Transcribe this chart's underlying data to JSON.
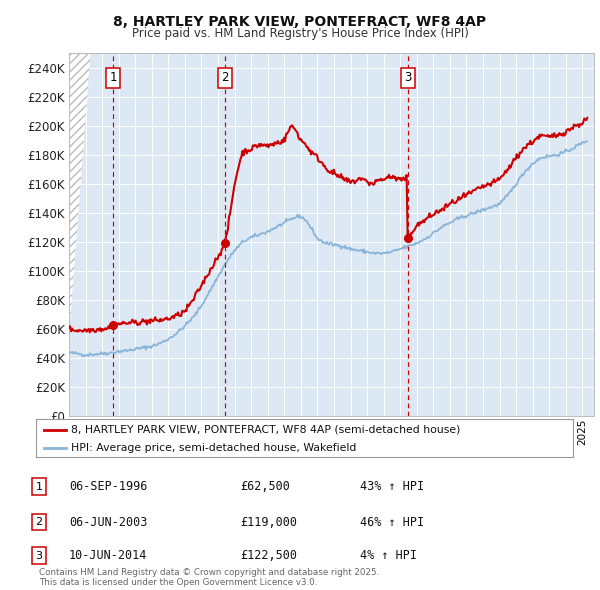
{
  "title1": "8, HARTLEY PARK VIEW, PONTEFRACT, WF8 4AP",
  "title2": "Price paid vs. HM Land Registry's House Price Index (HPI)",
  "background_color": "#dce9f5",
  "plot_bg_color": "#dce9f5",
  "grid_color": "#ffffff",
  "hpi_line_color": "#8ab4d8",
  "price_line_color": "#cc0000",
  "sale_marker_color": "#cc0000",
  "vline_color": "#cc0000",
  "ylim": [
    0,
    250000
  ],
  "yticks": [
    0,
    20000,
    40000,
    60000,
    80000,
    100000,
    120000,
    140000,
    160000,
    180000,
    200000,
    220000,
    240000
  ],
  "xlim_start": 1994.0,
  "xlim_end": 2025.7,
  "sales": [
    {
      "year": 1996.67,
      "price": 62500,
      "label": "1"
    },
    {
      "year": 2003.42,
      "price": 119000,
      "label": "2"
    },
    {
      "year": 2014.44,
      "price": 122500,
      "label": "3"
    }
  ],
  "sale_annotations": [
    {
      "label": "1",
      "date": "06-SEP-1996",
      "price": "£62,500",
      "hpi_pct": "43% ↑ HPI"
    },
    {
      "label": "2",
      "date": "06-JUN-2003",
      "price": "£119,000",
      "hpi_pct": "46% ↑ HPI"
    },
    {
      "label": "3",
      "date": "10-JUN-2014",
      "price": "£122,500",
      "hpi_pct": "4% ↑ HPI"
    }
  ],
  "legend_line1": "8, HARTLEY PARK VIEW, PONTEFRACT, WF8 4AP (semi-detached house)",
  "legend_line2": "HPI: Average price, semi-detached house, Wakefield",
  "footer": "Contains HM Land Registry data © Crown copyright and database right 2025.\nThis data is licensed under the Open Government Licence v3.0.",
  "hpi_anchors": [
    [
      1994.0,
      43500
    ],
    [
      1994.5,
      43000
    ],
    [
      1995.0,
      42000
    ],
    [
      1995.5,
      42500
    ],
    [
      1996.0,
      43000
    ],
    [
      1996.5,
      43500
    ],
    [
      1997.0,
      44500
    ],
    [
      1997.5,
      45000
    ],
    [
      1998.0,
      46000
    ],
    [
      1998.5,
      47000
    ],
    [
      1999.0,
      48000
    ],
    [
      1999.5,
      50000
    ],
    [
      2000.0,
      53000
    ],
    [
      2000.5,
      57000
    ],
    [
      2001.0,
      62000
    ],
    [
      2001.5,
      68000
    ],
    [
      2002.0,
      76000
    ],
    [
      2002.5,
      86000
    ],
    [
      2003.0,
      96000
    ],
    [
      2003.5,
      106000
    ],
    [
      2004.0,
      114000
    ],
    [
      2004.5,
      120000
    ],
    [
      2005.0,
      123000
    ],
    [
      2005.5,
      125000
    ],
    [
      2006.0,
      127000
    ],
    [
      2006.5,
      130000
    ],
    [
      2007.0,
      133000
    ],
    [
      2007.5,
      136000
    ],
    [
      2007.9,
      138000
    ],
    [
      2008.3,
      135000
    ],
    [
      2008.7,
      128000
    ],
    [
      2009.0,
      122000
    ],
    [
      2009.5,
      119000
    ],
    [
      2010.0,
      118000
    ],
    [
      2010.5,
      117000
    ],
    [
      2011.0,
      115000
    ],
    [
      2011.5,
      114000
    ],
    [
      2012.0,
      113000
    ],
    [
      2012.5,
      112000
    ],
    [
      2013.0,
      112000
    ],
    [
      2013.5,
      113000
    ],
    [
      2014.0,
      115000
    ],
    [
      2014.5,
      117000
    ],
    [
      2015.0,
      119000
    ],
    [
      2015.5,
      122000
    ],
    [
      2016.0,
      126000
    ],
    [
      2016.5,
      130000
    ],
    [
      2017.0,
      133000
    ],
    [
      2017.5,
      136000
    ],
    [
      2018.0,
      138000
    ],
    [
      2018.5,
      140000
    ],
    [
      2019.0,
      142000
    ],
    [
      2019.5,
      144000
    ],
    [
      2020.0,
      146000
    ],
    [
      2020.5,
      152000
    ],
    [
      2021.0,
      160000
    ],
    [
      2021.5,
      168000
    ],
    [
      2022.0,
      174000
    ],
    [
      2022.5,
      178000
    ],
    [
      2023.0,
      179000
    ],
    [
      2023.5,
      180000
    ],
    [
      2024.0,
      182000
    ],
    [
      2024.5,
      185000
    ],
    [
      2025.0,
      188000
    ],
    [
      2025.3,
      190000
    ]
  ],
  "price_anchors": [
    [
      1994.0,
      60000
    ],
    [
      1994.5,
      59000
    ],
    [
      1995.0,
      59000
    ],
    [
      1995.5,
      59500
    ],
    [
      1996.0,
      60000
    ],
    [
      1996.5,
      61000
    ],
    [
      1996.67,
      62500
    ],
    [
      1997.0,
      63500
    ],
    [
      1997.5,
      64000
    ],
    [
      1998.0,
      64500
    ],
    [
      1998.5,
      65000
    ],
    [
      1999.0,
      65500
    ],
    [
      1999.5,
      66000
    ],
    [
      2000.0,
      67000
    ],
    [
      2000.5,
      69000
    ],
    [
      2001.0,
      72000
    ],
    [
      2001.5,
      80000
    ],
    [
      2002.0,
      90000
    ],
    [
      2002.5,
      100000
    ],
    [
      2003.0,
      110000
    ],
    [
      2003.42,
      119000
    ],
    [
      2003.6,
      130000
    ],
    [
      2004.0,
      160000
    ],
    [
      2004.3,
      175000
    ],
    [
      2004.5,
      182000
    ],
    [
      2005.0,
      184000
    ],
    [
      2005.5,
      187000
    ],
    [
      2006.0,
      186000
    ],
    [
      2006.5,
      188000
    ],
    [
      2007.0,
      190000
    ],
    [
      2007.4,
      200000
    ],
    [
      2007.7,
      197000
    ],
    [
      2008.0,
      190000
    ],
    [
      2008.3,
      187000
    ],
    [
      2008.6,
      182000
    ],
    [
      2009.0,
      178000
    ],
    [
      2009.3,
      174000
    ],
    [
      2009.6,
      170000
    ],
    [
      2010.0,
      167000
    ],
    [
      2010.3,
      165000
    ],
    [
      2010.6,
      163000
    ],
    [
      2011.0,
      161000
    ],
    [
      2011.3,
      162000
    ],
    [
      2011.6,
      164000
    ],
    [
      2012.0,
      161000
    ],
    [
      2012.3,
      160000
    ],
    [
      2012.6,
      162000
    ],
    [
      2013.0,
      163000
    ],
    [
      2013.3,
      165000
    ],
    [
      2013.6,
      164000
    ],
    [
      2014.0,
      163000
    ],
    [
      2014.2,
      162000
    ],
    [
      2014.42,
      165000
    ],
    [
      2014.44,
      122500
    ],
    [
      2014.5,
      124000
    ],
    [
      2014.7,
      127000
    ],
    [
      2015.0,
      131000
    ],
    [
      2015.5,
      135000
    ],
    [
      2016.0,
      139000
    ],
    [
      2016.5,
      142000
    ],
    [
      2017.0,
      146000
    ],
    [
      2017.5,
      149000
    ],
    [
      2018.0,
      152000
    ],
    [
      2018.5,
      155000
    ],
    [
      2019.0,
      158000
    ],
    [
      2019.5,
      160000
    ],
    [
      2020.0,
      163000
    ],
    [
      2020.5,
      170000
    ],
    [
      2021.0,
      178000
    ],
    [
      2021.5,
      185000
    ],
    [
      2022.0,
      189000
    ],
    [
      2022.3,
      192000
    ],
    [
      2022.6,
      193000
    ],
    [
      2023.0,
      192000
    ],
    [
      2023.3,
      193000
    ],
    [
      2023.6,
      194000
    ],
    [
      2024.0,
      196000
    ],
    [
      2024.3,
      198000
    ],
    [
      2024.6,
      200000
    ],
    [
      2025.0,
      202000
    ],
    [
      2025.3,
      205000
    ]
  ]
}
